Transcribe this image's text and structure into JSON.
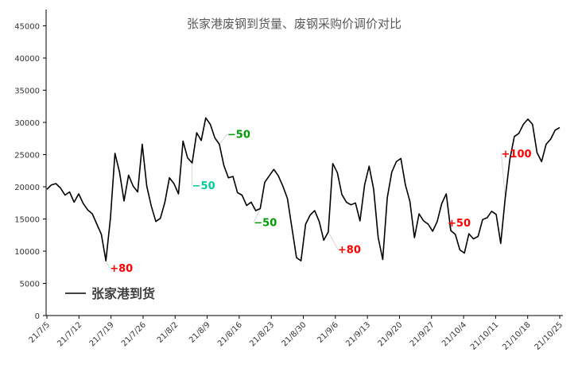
{
  "chart_data": {
    "type": "line",
    "title": "张家港废钢到货量、废钢采购价调价对比",
    "xlabel": "",
    "ylabel": "",
    "ylim": [
      0,
      45000
    ],
    "yticks": [
      0,
      5000,
      10000,
      15000,
      20000,
      25000,
      30000,
      35000,
      40000,
      45000
    ],
    "grid": false,
    "legend_position": "bottom-left",
    "xtick_labels": [
      "21/7/5",
      "21/7/12",
      "21/7/19",
      "21/7/26",
      "21/8/2",
      "21/8/9",
      "21/8/16",
      "21/8/23",
      "21/8/30",
      "21/9/6",
      "21/9/13",
      "21/9/20",
      "21/9/27",
      "21/10/4",
      "21/10/11",
      "21/10/18",
      "21/10/25"
    ],
    "series": [
      {
        "name": "张家港到货",
        "color": "#000000",
        "values": [
          19600,
          20300,
          20500,
          19800,
          18700,
          19200,
          17600,
          18900,
          17400,
          16400,
          15800,
          14200,
          12600,
          8500,
          15100,
          25200,
          22300,
          17800,
          21800,
          20100,
          19200,
          26600,
          20100,
          17000,
          14600,
          15100,
          17600,
          21400,
          20500,
          18900,
          27100,
          24500,
          23700,
          28400,
          27200,
          30700,
          29700,
          27600,
          26600,
          23300,
          21400,
          21600,
          19100,
          18700,
          17100,
          17600,
          16300,
          16600,
          20700,
          21700,
          22700,
          21700,
          20100,
          18200,
          13600,
          9000,
          8500,
          14200,
          15600,
          16300,
          14600,
          11700,
          13000,
          23600,
          22200,
          18800,
          17600,
          17200,
          17500,
          14700,
          20300,
          23200,
          19600,
          12100,
          8700,
          18300,
          22300,
          23900,
          24400,
          20300,
          17700,
          12100,
          15800,
          14700,
          14200,
          13100,
          14600,
          17400,
          18900,
          13200,
          12600,
          10200,
          9700,
          12700,
          11900,
          12300,
          14900,
          15200,
          16200,
          15700,
          11200,
          18300,
          24200,
          27800,
          28300,
          29700,
          30500,
          29700,
          25300,
          23900,
          26600,
          27400,
          28800,
          29200
        ]
      }
    ],
    "annotations": [
      {
        "text": "+80",
        "color": "#ff0000",
        "index": 13
      },
      {
        "text": "−50",
        "color": "#00cc99",
        "index": 32
      },
      {
        "text": "−50",
        "color": "#009900",
        "index": 38
      },
      {
        "text": "−50",
        "color": "#009900",
        "index": 47
      },
      {
        "text": "+80",
        "color": "#ff0000",
        "index": 62
      },
      {
        "text": "+50",
        "color": "#ff0000",
        "index": 89
      },
      {
        "text": "+100",
        "color": "#ff0000",
        "index": 101
      }
    ]
  }
}
